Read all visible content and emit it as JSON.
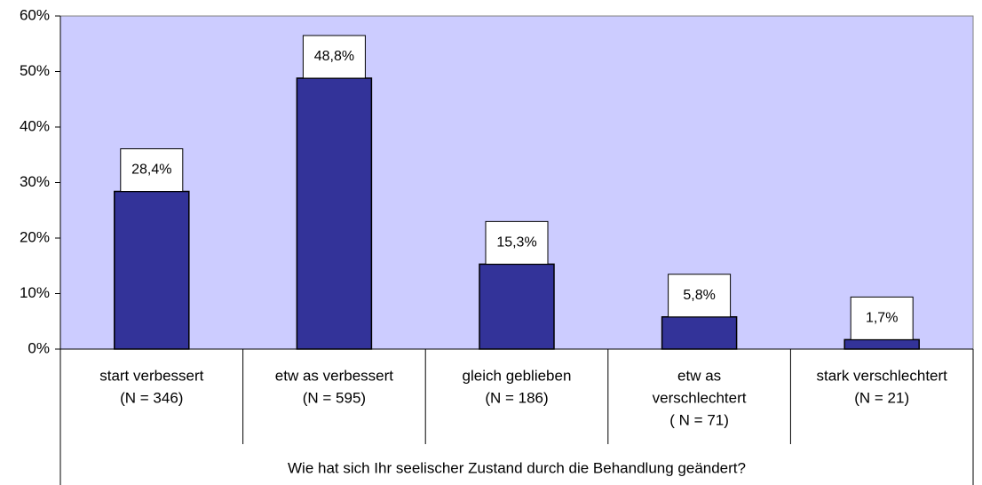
{
  "chart_data": {
    "type": "bar",
    "categories": [
      [
        "start verbessert",
        "(N = 346)"
      ],
      [
        "etw as verbessert",
        "(N = 595)"
      ],
      [
        "gleich geblieben",
        "(N = 186)"
      ],
      [
        "etw as",
        "verschlechtert",
        "( N = 71)"
      ],
      [
        "stark verschlechtert",
        "(N = 21)"
      ]
    ],
    "values": [
      28.4,
      48.8,
      15.3,
      5.8,
      1.7
    ],
    "value_labels": [
      "28,4%",
      "48,8%",
      "15,3%",
      "5,8%",
      "1,7%"
    ],
    "color": "#333399",
    "xlabel": "Wie hat sich Ihr seelischer Zustand durch die Behandlung geändert?",
    "ylim": [
      0,
      60
    ],
    "yticks": [
      {
        "value": 0,
        "label": "0%"
      },
      {
        "value": 10,
        "label": "10%"
      },
      {
        "value": 20,
        "label": "20%"
      },
      {
        "value": 30,
        "label": "30%"
      },
      {
        "value": 40,
        "label": "40%"
      },
      {
        "value": 50,
        "label": "50%"
      },
      {
        "value": 60,
        "label": "60%"
      }
    ]
  }
}
